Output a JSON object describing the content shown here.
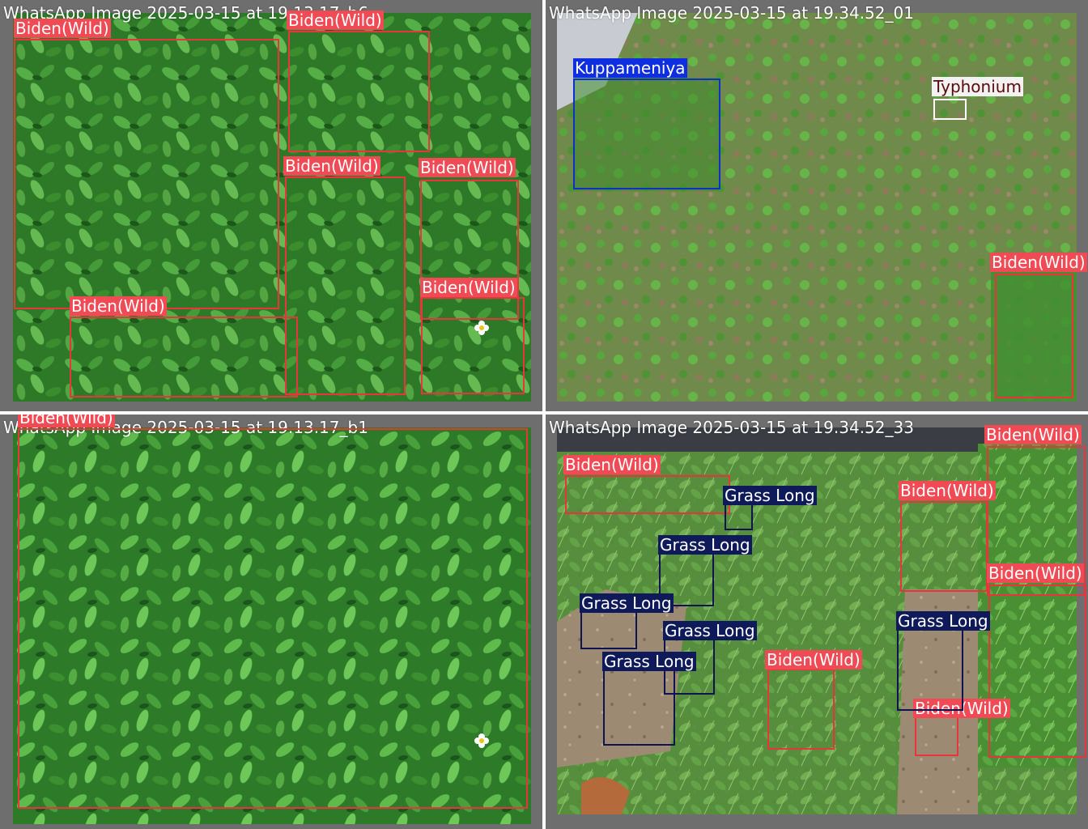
{
  "colors": {
    "biden_box": "#e8343c",
    "biden_tag": "#f04a55",
    "kuppameniya": "#0f2ee0",
    "typhonium_tag": "#f2f2f2",
    "grass_long": "#0f1a5a",
    "panel_border": "#6e6e6e"
  },
  "panels": [
    {
      "title": "WhatsApp Image 2025-03-15 at 19.13.17_b6",
      "labels": [
        "Biden(Wild)",
        "Biden(Wild)",
        "Biden(Wild)",
        "Biden(Wild)",
        "Biden(Wild)",
        "Biden(Wild)"
      ]
    },
    {
      "title": "WhatsApp Image 2025-03-15 at 19.34.52_01",
      "labels": [
        "Kuppameniya",
        "Typhonium",
        "Biden(Wild)"
      ]
    },
    {
      "title": "WhatsApp Image 2025-03-15 at 19.13.17_b1",
      "labels": [
        "Biden(Wild)"
      ]
    },
    {
      "title": "WhatsApp Image 2025-03-15 at 19.34.52_33",
      "labels": [
        "Biden(Wild)",
        "Biden(Wild)",
        "Biden(Wild)",
        "Biden(Wild)",
        "Biden(Wild)",
        "Biden(Wild)",
        "Grass Long",
        "Grass Long",
        "Grass Long",
        "Grass Long",
        "Grass Long",
        "Grass Long"
      ]
    }
  ]
}
